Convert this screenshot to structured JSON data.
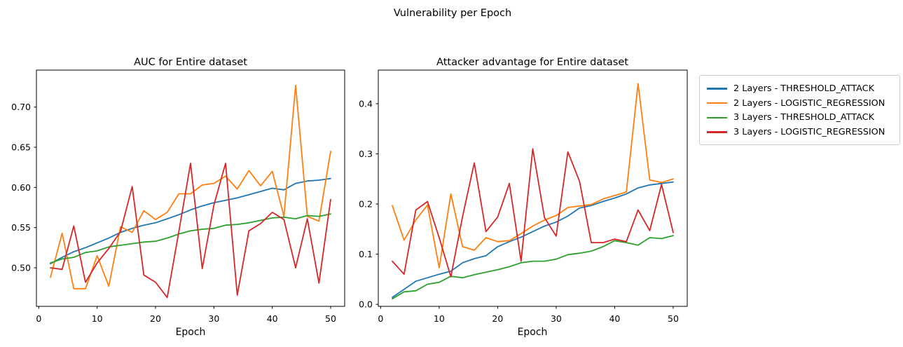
{
  "suptitle": "Vulnerability per Epoch",
  "colors": {
    "blue": "#1f77b4",
    "orange": "#ff7f0e",
    "green": "#2ca02c",
    "red": "#d62728"
  },
  "legend": {
    "items": [
      {
        "label": "2 Layers - THRESHOLD_ATTACK",
        "color": "#1f77b4"
      },
      {
        "label": "2 Layers - LOGISTIC_REGRESSION",
        "color": "#ff7f0e"
      },
      {
        "label": "3 Layers - THRESHOLD_ATTACK",
        "color": "#2ca02c"
      },
      {
        "label": "3 Layers - LOGISTIC_REGRESSION",
        "color": "#d62728"
      }
    ]
  },
  "chart_data": [
    {
      "type": "line",
      "title": "AUC for Entire dataset",
      "xlabel": "Epoch",
      "grid": false,
      "xlim": [
        -0.4,
        52.4
      ],
      "ylim": [
        0.452,
        0.746
      ],
      "xticks": [
        "0",
        "10",
        "20",
        "30",
        "40",
        "50"
      ],
      "yticks": [
        "0.50",
        "0.55",
        "0.60",
        "0.65",
        "0.70"
      ],
      "x": [
        2,
        4,
        6,
        8,
        10,
        12,
        14,
        16,
        18,
        20,
        22,
        24,
        26,
        28,
        30,
        32,
        34,
        36,
        38,
        40,
        42,
        44,
        46,
        48,
        50
      ],
      "series": [
        {
          "name": "2 Layers - THRESHOLD_ATTACK",
          "color": "#1f77b4",
          "values": [
            0.505,
            0.513,
            0.52,
            0.525,
            0.531,
            0.537,
            0.544,
            0.549,
            0.553,
            0.556,
            0.561,
            0.566,
            0.572,
            0.577,
            0.581,
            0.584,
            0.587,
            0.591,
            0.595,
            0.599,
            0.597,
            0.605,
            0.608,
            0.609,
            0.611
          ]
        },
        {
          "name": "2 Layers - LOGISTIC_REGRESSION",
          "color": "#ff7f0e",
          "values": [
            0.488,
            0.543,
            0.474,
            0.474,
            0.515,
            0.477,
            0.551,
            0.544,
            0.571,
            0.56,
            0.569,
            0.592,
            0.592,
            0.603,
            0.605,
            0.614,
            0.598,
            0.621,
            0.602,
            0.62,
            0.564,
            0.727,
            0.564,
            0.558,
            0.645
          ]
        },
        {
          "name": "3 Layers - THRESHOLD_ATTACK",
          "color": "#2ca02c",
          "values": [
            0.506,
            0.511,
            0.513,
            0.519,
            0.521,
            0.526,
            0.528,
            0.53,
            0.532,
            0.533,
            0.537,
            0.542,
            0.546,
            0.548,
            0.549,
            0.553,
            0.554,
            0.556,
            0.559,
            0.562,
            0.563,
            0.561,
            0.565,
            0.564,
            0.567
          ]
        },
        {
          "name": "3 Layers - LOGISTIC_REGRESSION",
          "color": "#d62728",
          "values": [
            0.5,
            0.498,
            0.552,
            0.482,
            0.506,
            0.524,
            0.545,
            0.601,
            0.491,
            0.482,
            0.463,
            0.545,
            0.63,
            0.499,
            0.578,
            0.63,
            0.466,
            0.546,
            0.555,
            0.569,
            0.56,
            0.5,
            0.561,
            0.481,
            0.585
          ]
        }
      ]
    },
    {
      "type": "line",
      "title": "Attacker advantage for Entire dataset",
      "xlabel": "Epoch",
      "grid": false,
      "xlim": [
        -0.4,
        52.4
      ],
      "ylim": [
        -0.004,
        0.467
      ],
      "xticks": [
        "0",
        "10",
        "20",
        "30",
        "40",
        "50"
      ],
      "yticks": [
        "0.0",
        "0.1",
        "0.2",
        "0.3",
        "0.4"
      ],
      "x": [
        2,
        4,
        6,
        8,
        10,
        12,
        14,
        16,
        18,
        20,
        22,
        24,
        26,
        28,
        30,
        32,
        34,
        36,
        38,
        40,
        42,
        44,
        46,
        48,
        50
      ],
      "series": [
        {
          "name": "2 Layers - THRESHOLD_ATTACK",
          "color": "#1f77b4",
          "values": [
            0.014,
            0.03,
            0.046,
            0.053,
            0.06,
            0.066,
            0.083,
            0.091,
            0.097,
            0.115,
            0.125,
            0.134,
            0.145,
            0.156,
            0.164,
            0.176,
            0.192,
            0.197,
            0.205,
            0.212,
            0.22,
            0.232,
            0.238,
            0.241,
            0.244
          ]
        },
        {
          "name": "2 Layers - LOGISTIC_REGRESSION",
          "color": "#ff7f0e",
          "values": [
            0.197,
            0.128,
            0.168,
            0.198,
            0.073,
            0.22,
            0.115,
            0.108,
            0.133,
            0.125,
            0.127,
            0.141,
            0.156,
            0.168,
            0.177,
            0.193,
            0.196,
            0.199,
            0.21,
            0.217,
            0.224,
            0.44,
            0.248,
            0.243,
            0.25
          ]
        },
        {
          "name": "3 Layers - THRESHOLD_ATTACK",
          "color": "#2ca02c",
          "values": [
            0.011,
            0.025,
            0.027,
            0.04,
            0.044,
            0.056,
            0.053,
            0.059,
            0.064,
            0.069,
            0.075,
            0.083,
            0.086,
            0.086,
            0.09,
            0.099,
            0.102,
            0.106,
            0.115,
            0.127,
            0.123,
            0.118,
            0.133,
            0.131,
            0.137
          ]
        },
        {
          "name": "3 Layers - LOGISTIC_REGRESSION",
          "color": "#d62728",
          "values": [
            0.086,
            0.06,
            0.188,
            0.205,
            0.133,
            0.055,
            0.175,
            0.282,
            0.145,
            0.174,
            0.241,
            0.086,
            0.31,
            0.173,
            0.136,
            0.304,
            0.245,
            0.123,
            0.123,
            0.13,
            0.125,
            0.188,
            0.147,
            0.239,
            0.143
          ]
        }
      ]
    }
  ]
}
